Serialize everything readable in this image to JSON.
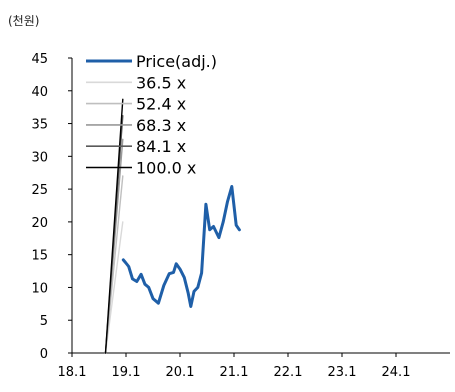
{
  "chart_data": {
    "type": "line",
    "unit_label": "(천원)",
    "x_ticks": [
      "18.1",
      "19.1",
      "20.1",
      "21.1",
      "22.1",
      "23.1",
      "24.1"
    ],
    "xlim": [
      2018.0,
      2025.0
    ],
    "ylim": [
      0,
      45
    ],
    "y_ticks": [
      0,
      5,
      10,
      15,
      20,
      25,
      30,
      35,
      40,
      45
    ],
    "grid": false,
    "legend_position": "top-left",
    "series": [
      {
        "name": "Price(adj.)",
        "color": "#1f5fa8",
        "points": [
          [
            2018.95,
            14.2
          ],
          [
            2018.99,
            13.8
          ],
          [
            2019.05,
            13.2
          ],
          [
            2019.12,
            11.3
          ],
          [
            2019.2,
            10.9
          ],
          [
            2019.28,
            12.0
          ],
          [
            2019.35,
            10.5
          ],
          [
            2019.42,
            10.0
          ],
          [
            2019.5,
            8.3
          ],
          [
            2019.6,
            7.6
          ],
          [
            2019.7,
            10.3
          ],
          [
            2019.8,
            12.1
          ],
          [
            2019.88,
            12.3
          ],
          [
            2019.93,
            13.6
          ],
          [
            2020.0,
            12.8
          ],
          [
            2020.08,
            11.5
          ],
          [
            2020.15,
            9.2
          ],
          [
            2020.2,
            7.1
          ],
          [
            2020.26,
            9.4
          ],
          [
            2020.33,
            10.0
          ],
          [
            2020.4,
            12.2
          ],
          [
            2020.48,
            22.7
          ],
          [
            2020.55,
            18.8
          ],
          [
            2020.62,
            19.3
          ],
          [
            2020.72,
            17.6
          ],
          [
            2020.8,
            20.0
          ],
          [
            2020.88,
            23.1
          ],
          [
            2020.96,
            25.4
          ],
          [
            2021.04,
            19.5
          ],
          [
            2021.1,
            18.8
          ]
        ]
      },
      {
        "name": "36.5 x",
        "color": "#d9d9d9",
        "points": [
          [
            2018.62,
            0
          ],
          [
            2018.94,
            20.0
          ]
        ]
      },
      {
        "name": "52.4 x",
        "color": "#bfbfbf",
        "points": [
          [
            2018.62,
            0
          ],
          [
            2018.94,
            27.0
          ]
        ]
      },
      {
        "name": "68.3 x",
        "color": "#999999",
        "points": [
          [
            2018.62,
            0
          ],
          [
            2018.94,
            32.6
          ]
        ]
      },
      {
        "name": "84.1 x",
        "color": "#5a5a5a",
        "points": [
          [
            2018.62,
            0
          ],
          [
            2018.94,
            36.2
          ]
        ]
      },
      {
        "name": "100.0 x",
        "color": "#000000",
        "points": [
          [
            2018.62,
            0
          ],
          [
            2018.94,
            38.7
          ]
        ]
      }
    ]
  }
}
